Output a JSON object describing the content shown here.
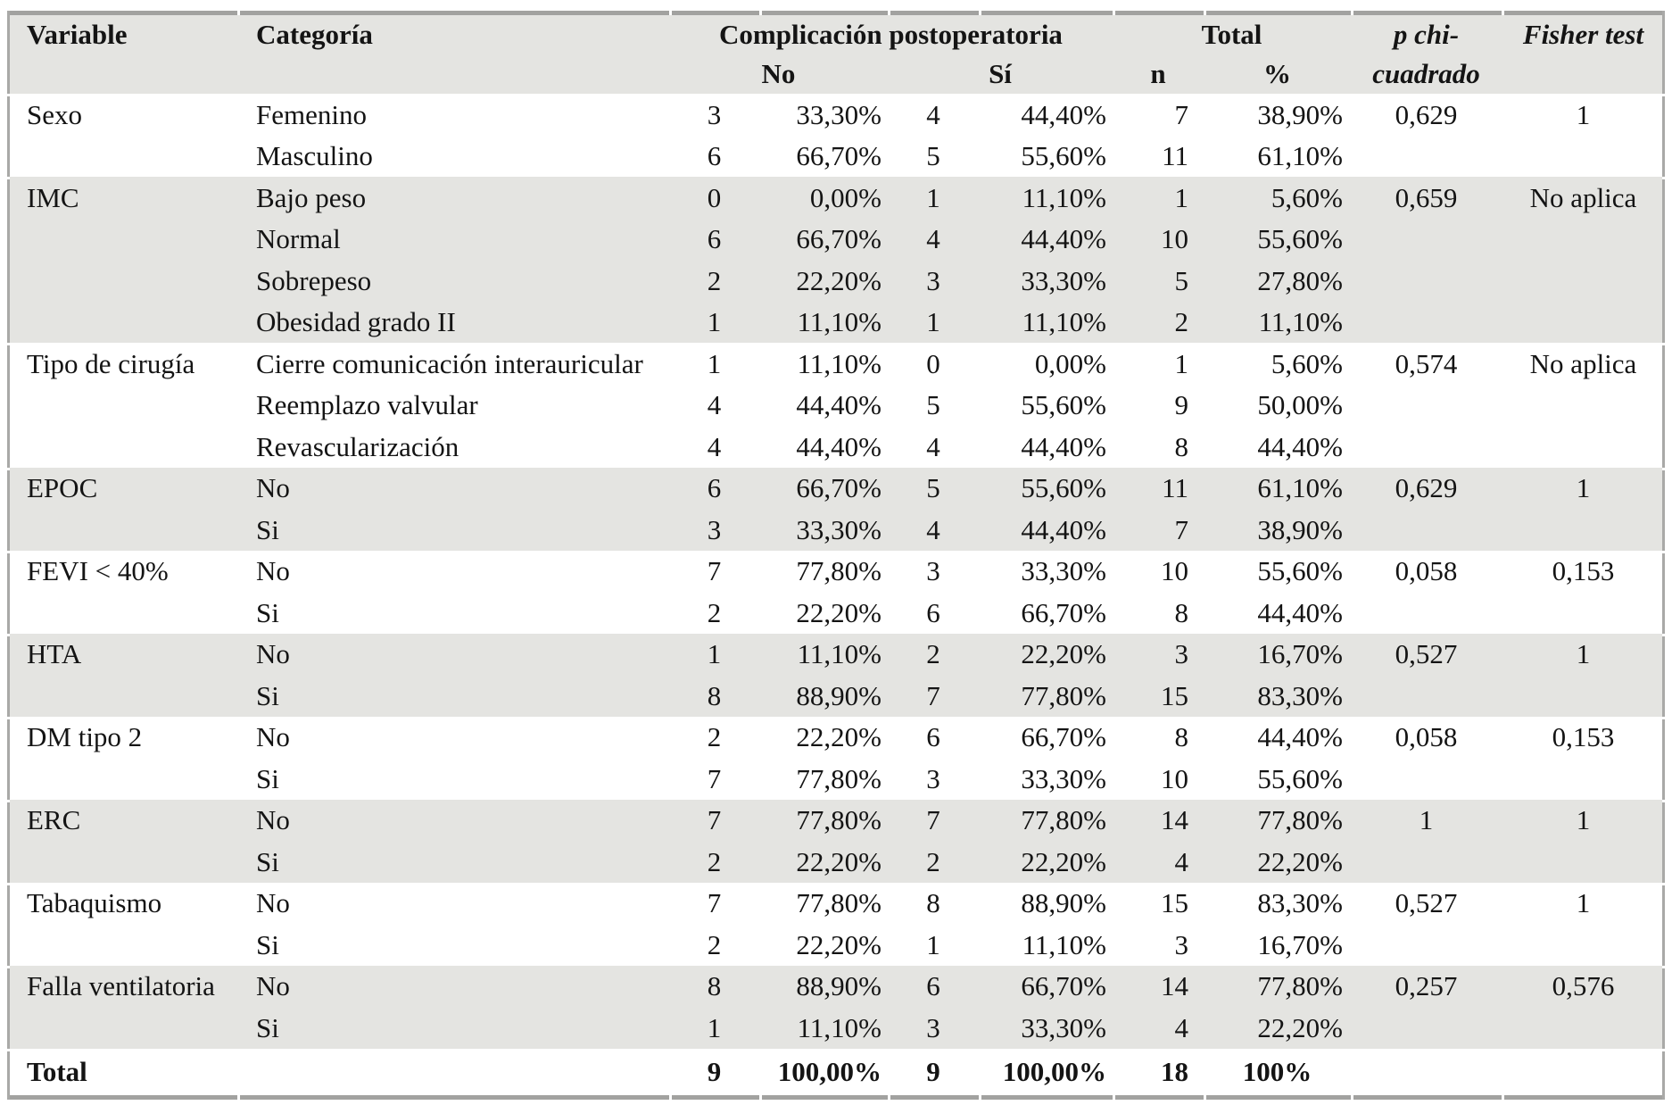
{
  "colors": {
    "band": "#e4e4e1",
    "border_bar": "#a2a2a0",
    "border_side": "#a9a9a7",
    "text": "#141414",
    "background": "#ffffff"
  },
  "header": {
    "variable": "Variable",
    "categoria": "Categoría",
    "complicacion": "Complicación postoperatoria",
    "no": "No",
    "si": "Sí",
    "total": "Total",
    "n": "n",
    "pct": "%",
    "p_chi_line1": "p chi-",
    "p_chi_line2": "cuadrado",
    "fisher": "Fisher test"
  },
  "groups": [
    {
      "variable": "Sexo",
      "shaded": false,
      "p_chi": "0,629",
      "fisher": "1",
      "rows": [
        {
          "categoria": "Femenino",
          "no_n": "3",
          "no_pct": "33,30%",
          "si_n": "4",
          "si_pct": "44,40%",
          "n": "7",
          "pct": "38,90%"
        },
        {
          "categoria": "Masculino",
          "no_n": "6",
          "no_pct": "66,70%",
          "si_n": "5",
          "si_pct": "55,60%",
          "n": "11",
          "pct": "61,10%"
        }
      ]
    },
    {
      "variable": "IMC",
      "shaded": true,
      "p_chi": "0,659",
      "fisher": "No aplica",
      "rows": [
        {
          "categoria": "Bajo peso",
          "no_n": "0",
          "no_pct": "0,00%",
          "si_n": "1",
          "si_pct": "11,10%",
          "n": "1",
          "pct": "5,60%"
        },
        {
          "categoria": "Normal",
          "no_n": "6",
          "no_pct": "66,70%",
          "si_n": "4",
          "si_pct": "44,40%",
          "n": "10",
          "pct": "55,60%"
        },
        {
          "categoria": "Sobrepeso",
          "no_n": "2",
          "no_pct": "22,20%",
          "si_n": "3",
          "si_pct": "33,30%",
          "n": "5",
          "pct": "27,80%"
        },
        {
          "categoria": "Obesidad grado II",
          "no_n": "1",
          "no_pct": "11,10%",
          "si_n": "1",
          "si_pct": "11,10%",
          "n": "2",
          "pct": "11,10%"
        }
      ]
    },
    {
      "variable": "Tipo de cirugía",
      "shaded": false,
      "p_chi": "0,574",
      "fisher": "No aplica",
      "rows": [
        {
          "categoria": "Cierre comunicación interauricular",
          "no_n": "1",
          "no_pct": "11,10%",
          "si_n": "0",
          "si_pct": "0,00%",
          "n": "1",
          "pct": "5,60%"
        },
        {
          "categoria": "Reemplazo valvular",
          "no_n": "4",
          "no_pct": "44,40%",
          "si_n": "5",
          "si_pct": "55,60%",
          "n": "9",
          "pct": "50,00%"
        },
        {
          "categoria": "Revascularización",
          "no_n": "4",
          "no_pct": "44,40%",
          "si_n": "4",
          "si_pct": "44,40%",
          "n": "8",
          "pct": "44,40%"
        }
      ]
    },
    {
      "variable": "EPOC",
      "shaded": true,
      "p_chi": "0,629",
      "fisher": "1",
      "rows": [
        {
          "categoria": "No",
          "no_n": "6",
          "no_pct": "66,70%",
          "si_n": "5",
          "si_pct": "55,60%",
          "n": "11",
          "pct": "61,10%"
        },
        {
          "categoria": "Si",
          "no_n": "3",
          "no_pct": "33,30%",
          "si_n": "4",
          "si_pct": "44,40%",
          "n": "7",
          "pct": "38,90%"
        }
      ]
    },
    {
      "variable": "FEVI < 40%",
      "shaded": false,
      "p_chi": "0,058",
      "fisher": "0,153",
      "rows": [
        {
          "categoria": "No",
          "no_n": "7",
          "no_pct": "77,80%",
          "si_n": "3",
          "si_pct": "33,30%",
          "n": "10",
          "pct": "55,60%"
        },
        {
          "categoria": "Si",
          "no_n": "2",
          "no_pct": "22,20%",
          "si_n": "6",
          "si_pct": "66,70%",
          "n": "8",
          "pct": "44,40%"
        }
      ]
    },
    {
      "variable": "HTA",
      "shaded": true,
      "p_chi": "0,527",
      "fisher": "1",
      "rows": [
        {
          "categoria": "No",
          "no_n": "1",
          "no_pct": "11,10%",
          "si_n": "2",
          "si_pct": "22,20%",
          "n": "3",
          "pct": "16,70%"
        },
        {
          "categoria": "Si",
          "no_n": "8",
          "no_pct": "88,90%",
          "si_n": "7",
          "si_pct": "77,80%",
          "n": "15",
          "pct": "83,30%"
        }
      ]
    },
    {
      "variable": "DM tipo 2",
      "shaded": false,
      "p_chi": "0,058",
      "fisher": "0,153",
      "rows": [
        {
          "categoria": "No",
          "no_n": "2",
          "no_pct": "22,20%",
          "si_n": "6",
          "si_pct": "66,70%",
          "n": "8",
          "pct": "44,40%"
        },
        {
          "categoria": "Si",
          "no_n": "7",
          "no_pct": "77,80%",
          "si_n": "3",
          "si_pct": "33,30%",
          "n": "10",
          "pct": "55,60%"
        }
      ]
    },
    {
      "variable": "ERC",
      "shaded": true,
      "p_chi": "1",
      "fisher": "1",
      "rows": [
        {
          "categoria": "No",
          "no_n": "7",
          "no_pct": "77,80%",
          "si_n": "7",
          "si_pct": "77,80%",
          "n": "14",
          "pct": "77,80%"
        },
        {
          "categoria": "Si",
          "no_n": "2",
          "no_pct": "22,20%",
          "si_n": "2",
          "si_pct": "22,20%",
          "n": "4",
          "pct": "22,20%"
        }
      ]
    },
    {
      "variable": "Tabaquismo",
      "shaded": false,
      "p_chi": "0,527",
      "fisher": "1",
      "rows": [
        {
          "categoria": "No",
          "no_n": "7",
          "no_pct": "77,80%",
          "si_n": "8",
          "si_pct": "88,90%",
          "n": "15",
          "pct": "83,30%"
        },
        {
          "categoria": "Si",
          "no_n": "2",
          "no_pct": "22,20%",
          "si_n": "1",
          "si_pct": "11,10%",
          "n": "3",
          "pct": "16,70%"
        }
      ]
    },
    {
      "variable": "Falla ventilatoria",
      "shaded": true,
      "p_chi": "0,257",
      "fisher": "0,576",
      "rows": [
        {
          "categoria": "No",
          "no_n": "8",
          "no_pct": "88,90%",
          "si_n": "6",
          "si_pct": "66,70%",
          "n": "14",
          "pct": "77,80%"
        },
        {
          "categoria": "Si",
          "no_n": "1",
          "no_pct": "11,10%",
          "si_n": "3",
          "si_pct": "33,30%",
          "n": "4",
          "pct": "22,20%"
        }
      ]
    }
  ],
  "total": {
    "label": "Total",
    "no_n": "9",
    "no_pct": "100,00%",
    "si_n": "9",
    "si_pct": "100,00%",
    "n": "18",
    "pct": "100%"
  }
}
